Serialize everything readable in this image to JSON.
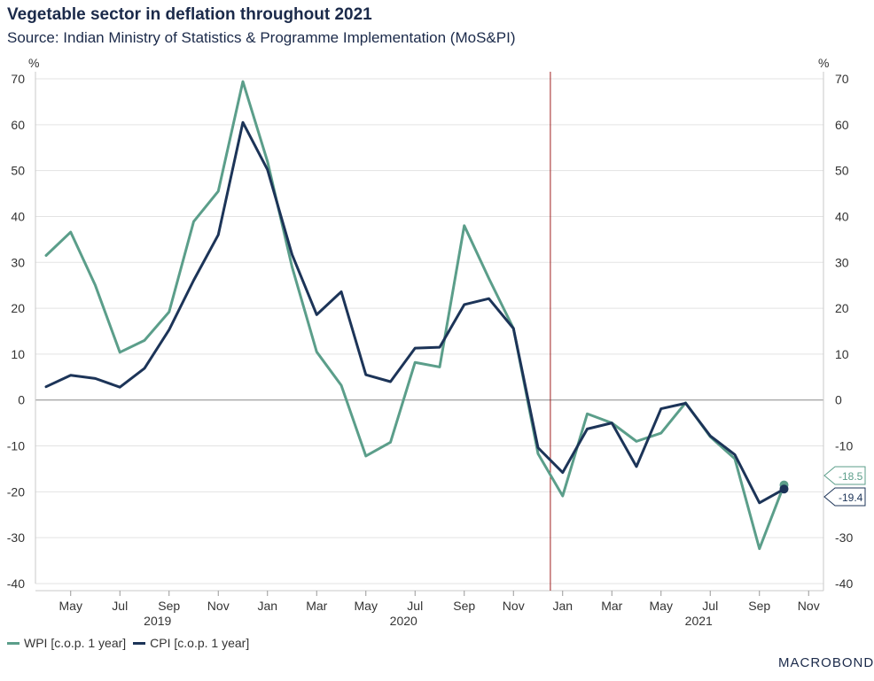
{
  "title": "Vegetable sector in deflation throughout 2021",
  "subtitle": "Source: Indian Ministry of Statistics & Programme Implementation (MoS&PI)",
  "logo": "MACROBOND",
  "chart_data": {
    "type": "line",
    "ylabel_left": "%",
    "ylabel_right": "%",
    "ylim": [
      -40,
      70
    ],
    "yticks": [
      70,
      60,
      50,
      40,
      30,
      20,
      10,
      0,
      -10,
      -20,
      -30,
      -40
    ],
    "x": [
      "2019-04",
      "2019-05",
      "2019-06",
      "2019-07",
      "2019-08",
      "2019-09",
      "2019-10",
      "2019-11",
      "2019-12",
      "2020-01",
      "2020-02",
      "2020-03",
      "2020-04",
      "2020-05",
      "2020-06",
      "2020-07",
      "2020-08",
      "2020-09",
      "2020-10",
      "2020-11",
      "2020-12",
      "2021-01",
      "2021-02",
      "2021-03",
      "2021-04",
      "2021-05",
      "2021-06",
      "2021-07",
      "2021-08",
      "2021-09",
      "2021-10"
    ],
    "xtick_labels": [
      {
        "month": "2019-05",
        "label": "May"
      },
      {
        "month": "2019-07",
        "label": "Jul"
      },
      {
        "month": "2019-09",
        "label": "Sep"
      },
      {
        "month": "2019-11",
        "label": "Nov"
      },
      {
        "month": "2020-01",
        "label": "Jan"
      },
      {
        "month": "2020-03",
        "label": "Mar"
      },
      {
        "month": "2020-05",
        "label": "May"
      },
      {
        "month": "2020-07",
        "label": "Jul"
      },
      {
        "month": "2020-09",
        "label": "Sep"
      },
      {
        "month": "2020-11",
        "label": "Nov"
      },
      {
        "month": "2021-01",
        "label": "Jan"
      },
      {
        "month": "2021-03",
        "label": "Mar"
      },
      {
        "month": "2021-05",
        "label": "May"
      },
      {
        "month": "2021-07",
        "label": "Jul"
      },
      {
        "month": "2021-09",
        "label": "Sep"
      },
      {
        "month": "2021-11",
        "label": "Nov"
      }
    ],
    "year_labels": [
      {
        "month": "2019-09",
        "label": "2019"
      },
      {
        "month": "2020-07",
        "label": "2020"
      },
      {
        "month": "2021-07",
        "label": "2021"
      }
    ],
    "vertical_marker": "2020-12-15",
    "series": [
      {
        "name": "WPI [c.o.p. 1 year]",
        "color": "#5b9e8a",
        "values": [
          31.5,
          36.6,
          25.0,
          10.4,
          13.0,
          19.2,
          38.9,
          45.5,
          69.4,
          52.0,
          29.0,
          10.5,
          3.2,
          -12.2,
          -9.2,
          8.2,
          7.2,
          38.0,
          26.5,
          15.6,
          -11.7,
          -20.9,
          -3.0,
          -5.0,
          -9.0,
          -7.2,
          -0.6,
          -8.0,
          -12.8,
          -32.4,
          -18.5
        ]
      },
      {
        "name": "CPI [c.o.p. 1 year]",
        "color": "#1c3458",
        "values": [
          2.9,
          5.4,
          4.7,
          2.8,
          6.9,
          15.3,
          26.1,
          36.0,
          60.5,
          50.2,
          31.7,
          18.6,
          23.6,
          5.5,
          4.0,
          11.3,
          11.5,
          20.8,
          22.1,
          15.6,
          -10.4,
          -15.8,
          -6.3,
          -5.0,
          -14.5,
          -1.9,
          -0.7,
          -7.8,
          -11.9,
          -22.4,
          -19.4
        ]
      }
    ],
    "end_labels": [
      {
        "series": "WPI [c.o.p. 1 year]",
        "text": "-18.5",
        "value": -18.5,
        "color": "#5b9e8a"
      },
      {
        "series": "CPI [c.o.p. 1 year]",
        "text": "-19.4",
        "value": -19.4,
        "color": "#1c3458"
      }
    ],
    "grid": true,
    "legend_position": "bottom-left"
  }
}
